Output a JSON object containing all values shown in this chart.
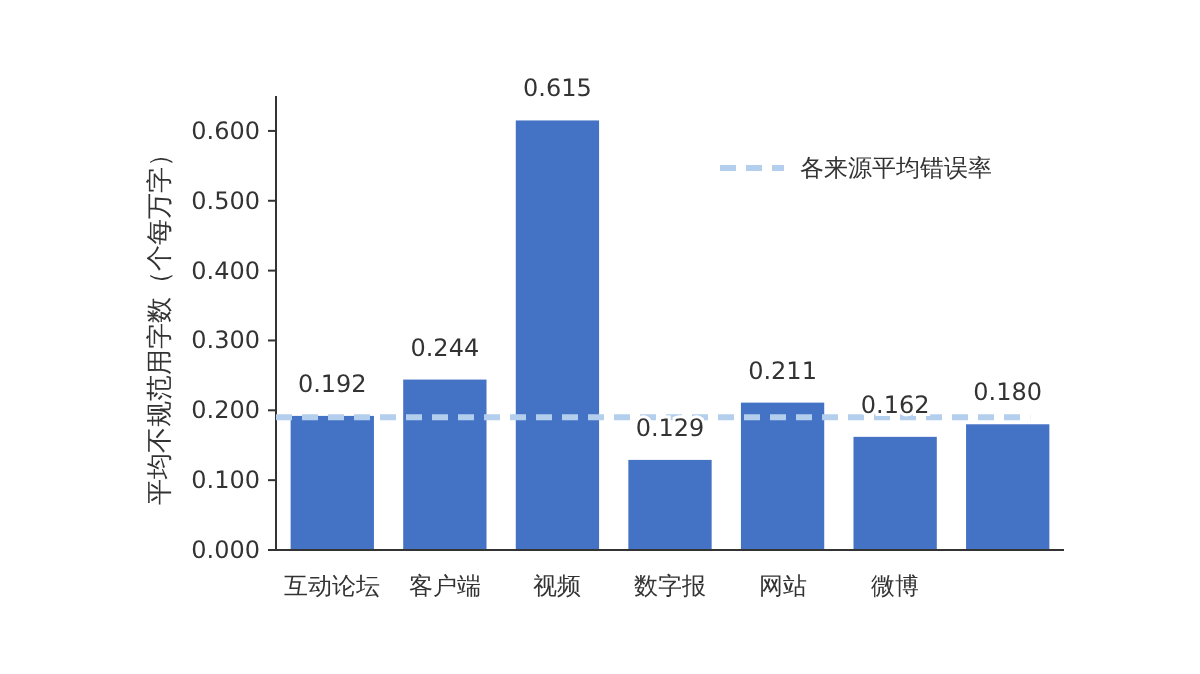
{
  "chart_data": {
    "type": "bar",
    "ylabel": "平均不规范用字数（个每万字）",
    "categories": [
      "互动论坛",
      "客户端",
      "视频",
      "数字报",
      "网站",
      "微博",
      null
    ],
    "values": [
      0.192,
      0.244,
      0.615,
      0.129,
      0.211,
      0.162,
      0.18
    ],
    "value_labels": [
      "0.192",
      "0.244",
      "0.615",
      "0.129",
      "0.211",
      "0.162",
      "0.180"
    ],
    "color": "#4472c4",
    "ylim": [
      0,
      0.65
    ],
    "yticks": [
      {
        "value": 0,
        "label": "0.000"
      },
      {
        "value": 0.1,
        "label": "0.100"
      },
      {
        "value": 0.2,
        "label": "0.200"
      },
      {
        "value": 0.3,
        "label": "0.300"
      },
      {
        "value": 0.4,
        "label": "0.400"
      },
      {
        "value": 0.5,
        "label": "0.500"
      },
      {
        "value": 0.6,
        "label": "0.600"
      }
    ],
    "ref_lines": [
      {
        "axis": "y",
        "value": 0.19,
        "label": "各来源平均错误率",
        "color": "#b4cfee",
        "line_style": "dashed"
      }
    ],
    "legend": "top right",
    "grid": false
  }
}
